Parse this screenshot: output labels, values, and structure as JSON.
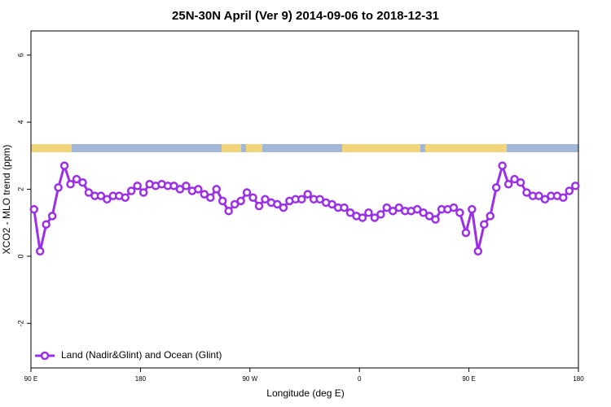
{
  "chart_data": {
    "type": "line",
    "title": "25N-30N April (Ver 9)   2014-09-06 to 2018-12-31",
    "xlabel": "Longitude (deg E)",
    "ylabel": "XCO2 - MLO trend (ppm)",
    "xlim": [
      90,
      540
    ],
    "ylim": [
      -3.33,
      6.72
    ],
    "xticks": [
      {
        "value": 90,
        "label": "90 E"
      },
      180,
      {
        "value": 270,
        "label": "90 W"
      },
      {
        "value": 360,
        "label": "0"
      },
      {
        "value": 450,
        "label": "90 E"
      },
      {
        "value": 540,
        "label": "180"
      }
    ],
    "yticks": [
      -2,
      0,
      2,
      4,
      6
    ],
    "legend": "bottom-left",
    "x": [
      92.5,
      97.5,
      102.5,
      107.5,
      112.5,
      117.5,
      122.5,
      127.5,
      132.5,
      137.5,
      142.5,
      147.5,
      152.5,
      157.5,
      162.5,
      167.5,
      172.5,
      177.5,
      182.5,
      187.5,
      192.5,
      197.5,
      202.5,
      207.5,
      212.5,
      217.5,
      222.5,
      227.5,
      232.5,
      237.5,
      242.5,
      247.5,
      252.5,
      257.5,
      262.5,
      267.5,
      272.5,
      277.5,
      282.5,
      287.5,
      292.5,
      297.5,
      302.5,
      307.5,
      312.5,
      317.5,
      322.5,
      327.5,
      332.5,
      337.5,
      342.5,
      347.5,
      352.5,
      357.5,
      362.5,
      367.5,
      372.5,
      377.5,
      382.5,
      387.5,
      392.5,
      397.5,
      402.5,
      407.5,
      412.5,
      417.5,
      422.5,
      427.5,
      432.5,
      437.5,
      442.5,
      447.5,
      452.5,
      457.5,
      462.5,
      467.5,
      472.5,
      477.5,
      482.5,
      487.5,
      492.5,
      497.5,
      502.5,
      507.5,
      512.5,
      517.5,
      522.5,
      527.5,
      532.5,
      537.5
    ],
    "series": [
      {
        "name": "Land (Nadir&Glint) and Ocean (Glint)",
        "color": "#9b30e6",
        "values": [
          1.4,
          0.15,
          0.95,
          1.2,
          2.05,
          2.7,
          2.15,
          2.3,
          2.2,
          1.9,
          1.8,
          1.8,
          1.7,
          1.8,
          1.8,
          1.75,
          1.95,
          2.1,
          1.9,
          2.15,
          2.1,
          2.15,
          2.1,
          2.1,
          2.0,
          2.1,
          1.95,
          2.0,
          1.85,
          1.75,
          2.0,
          1.65,
          1.35,
          1.55,
          1.65,
          1.9,
          1.75,
          1.5,
          1.7,
          1.6,
          1.55,
          1.45,
          1.65,
          1.7,
          1.7,
          1.85,
          1.7,
          1.7,
          1.6,
          1.55,
          1.45,
          1.45,
          1.3,
          1.2,
          1.15,
          1.3,
          1.15,
          1.25,
          1.45,
          1.35,
          1.45,
          1.35,
          1.35,
          1.4,
          1.3,
          1.2,
          1.1,
          1.4,
          1.4,
          1.45,
          1.3,
          0.7,
          1.4,
          0.15,
          0.95,
          1.2,
          2.05,
          2.7,
          2.15,
          2.3,
          2.2,
          1.9,
          1.8,
          1.8,
          1.7,
          1.8,
          1.8,
          1.75,
          1.95,
          2.1
        ]
      }
    ]
  }
}
